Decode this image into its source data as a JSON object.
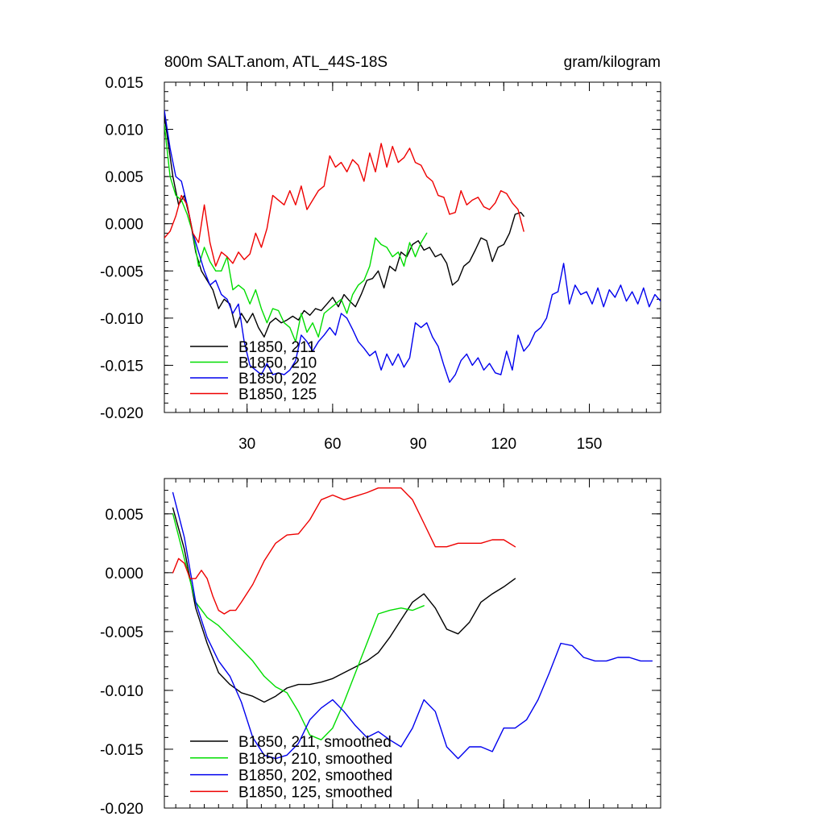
{
  "chart_data": [
    {
      "type": "line",
      "title": "800m SALT.anom, ATL_44S-18S",
      "units": "gram/kilogram",
      "xlim": [
        1,
        175
      ],
      "ylim": [
        -0.02,
        0.015
      ],
      "xticks": [
        30,
        60,
        90,
        120,
        150
      ],
      "yticks": [
        -0.02,
        -0.015,
        -0.01,
        -0.005,
        0.0,
        0.005,
        0.01,
        0.015
      ],
      "ytick_labels": [
        "-0.020",
        "-0.015",
        "-0.010",
        "-0.005",
        "0.000",
        "0.005",
        "0.010",
        "0.015"
      ],
      "legend_position": "bottom-left",
      "series": [
        {
          "name": "B1850, 211",
          "color": "#000000",
          "x": [
            1,
            4,
            6,
            8,
            10,
            12,
            14,
            16,
            18,
            20,
            22,
            24,
            26,
            28,
            30,
            32,
            34,
            36,
            38,
            40,
            42,
            44,
            46,
            48,
            50,
            52,
            54,
            56,
            58,
            60,
            62,
            64,
            66,
            68,
            70,
            72,
            74,
            76,
            78,
            80,
            82,
            84,
            86,
            88,
            90,
            92,
            94,
            96,
            98,
            100,
            102,
            104,
            106,
            108,
            110,
            112,
            114,
            116,
            118,
            120,
            122,
            124,
            126,
            127
          ],
          "y": [
            0.0115,
            0.005,
            0.002,
            0.003,
            0.0005,
            -0.003,
            -0.005,
            -0.006,
            -0.007,
            -0.009,
            -0.008,
            -0.0085,
            -0.011,
            -0.0095,
            -0.0105,
            -0.0095,
            -0.011,
            -0.012,
            -0.0105,
            -0.01,
            -0.0105,
            -0.0102,
            -0.0098,
            -0.0102,
            -0.0092,
            -0.0097,
            -0.009,
            -0.0092,
            -0.0085,
            -0.0078,
            -0.0088,
            -0.0075,
            -0.0082,
            -0.0088,
            -0.0075,
            -0.006,
            -0.0058,
            -0.005,
            -0.0068,
            -0.0045,
            -0.005,
            -0.003,
            -0.0035,
            -0.0022,
            -0.0018,
            -0.0028,
            -0.0025,
            -0.0035,
            -0.0032,
            -0.0042,
            -0.0065,
            -0.006,
            -0.0045,
            -0.004,
            -0.0028,
            -0.0015,
            -0.0018,
            -0.004,
            -0.0025,
            -0.0022,
            -0.001,
            0.001,
            0.0012,
            0.0008
          ]
        },
        {
          "name": "B1850, 210",
          "color": "#00dd00",
          "x": [
            1,
            3,
            5,
            7,
            9,
            11,
            13,
            15,
            17,
            19,
            21,
            23,
            25,
            27,
            29,
            31,
            33,
            35,
            37,
            39,
            41,
            43,
            45,
            47,
            49,
            51,
            53,
            55,
            57,
            59,
            61,
            63,
            65,
            67,
            69,
            71,
            73,
            75,
            77,
            79,
            81,
            83,
            85,
            87,
            89,
            91,
            93
          ],
          "y": [
            0.0105,
            0.005,
            0.003,
            0.0025,
            0.001,
            -0.001,
            -0.0045,
            -0.0025,
            -0.004,
            -0.005,
            -0.005,
            -0.0035,
            -0.007,
            -0.0065,
            -0.007,
            -0.0085,
            -0.007,
            -0.009,
            -0.0105,
            -0.009,
            -0.0092,
            -0.0105,
            -0.011,
            -0.0125,
            -0.0095,
            -0.0115,
            -0.0105,
            -0.012,
            -0.0095,
            -0.009,
            -0.0085,
            -0.008,
            -0.0095,
            -0.0075,
            -0.0065,
            -0.006,
            -0.0045,
            -0.0015,
            -0.0022,
            -0.0025,
            -0.0035,
            -0.003,
            -0.0045,
            -0.002,
            -0.0035,
            -0.002,
            -0.001
          ]
        },
        {
          "name": "B1850, 202",
          "color": "#0000ee",
          "x": [
            1,
            3,
            5,
            7,
            9,
            11,
            13,
            15,
            17,
            19,
            21,
            23,
            25,
            27,
            29,
            31,
            33,
            35,
            37,
            39,
            41,
            43,
            45,
            47,
            49,
            51,
            53,
            55,
            57,
            59,
            61,
            63,
            65,
            67,
            69,
            71,
            73,
            75,
            77,
            79,
            81,
            83,
            85,
            87,
            89,
            91,
            93,
            95,
            97,
            99,
            101,
            103,
            105,
            107,
            109,
            111,
            113,
            115,
            117,
            119,
            121,
            123,
            125,
            127,
            129,
            131,
            133,
            135,
            137,
            139,
            141,
            143,
            145,
            147,
            149,
            151,
            153,
            155,
            157,
            159,
            161,
            163,
            165,
            167,
            169,
            171,
            173,
            175
          ],
          "y": [
            0.012,
            0.008,
            0.005,
            0.0045,
            0.002,
            -0.001,
            -0.003,
            -0.005,
            -0.0065,
            -0.006,
            -0.0075,
            -0.008,
            -0.0095,
            -0.0085,
            -0.0125,
            -0.015,
            -0.0155,
            -0.016,
            -0.0148,
            -0.016,
            -0.0158,
            -0.016,
            -0.0155,
            -0.0145,
            -0.0118,
            -0.0125,
            -0.0135,
            -0.0125,
            -0.0118,
            -0.011,
            -0.0118,
            -0.0095,
            -0.01,
            -0.0112,
            -0.0125,
            -0.0132,
            -0.014,
            -0.0135,
            -0.0155,
            -0.0138,
            -0.015,
            -0.0138,
            -0.0152,
            -0.0142,
            -0.0105,
            -0.011,
            -0.0105,
            -0.012,
            -0.013,
            -0.015,
            -0.0168,
            -0.016,
            -0.0145,
            -0.0138,
            -0.015,
            -0.0142,
            -0.0155,
            -0.0148,
            -0.0158,
            -0.016,
            -0.0135,
            -0.0155,
            -0.0118,
            -0.0135,
            -0.0128,
            -0.0115,
            -0.011,
            -0.01,
            -0.0075,
            -0.0072,
            -0.0042,
            -0.0085,
            -0.0065,
            -0.0075,
            -0.0072,
            -0.0085,
            -0.0068,
            -0.0088,
            -0.007,
            -0.0078,
            -0.0065,
            -0.0082,
            -0.0072,
            -0.0085,
            -0.0068,
            -0.0088,
            -0.0075,
            -0.0082
          ]
        },
        {
          "name": "B1850, 125",
          "color": "#ee0000",
          "x": [
            1,
            3,
            5,
            7,
            9,
            11,
            13,
            15,
            17,
            19,
            21,
            23,
            25,
            27,
            29,
            31,
            33,
            35,
            37,
            39,
            41,
            43,
            45,
            47,
            49,
            51,
            53,
            55,
            57,
            59,
            61,
            63,
            65,
            67,
            69,
            71,
            73,
            75,
            77,
            79,
            81,
            83,
            85,
            87,
            89,
            91,
            93,
            95,
            97,
            99,
            101,
            103,
            105,
            107,
            109,
            111,
            113,
            115,
            117,
            119,
            121,
            123,
            125,
            127
          ],
          "y": [
            -0.0015,
            -0.0008,
            0.0008,
            0.003,
            0.002,
            -0.001,
            -0.002,
            0.002,
            -0.002,
            -0.0045,
            -0.003,
            -0.0035,
            -0.0042,
            -0.003,
            -0.0038,
            -0.0032,
            -0.001,
            -0.0025,
            -0.0005,
            0.003,
            0.0025,
            0.002,
            0.0035,
            0.002,
            0.004,
            0.0015,
            0.0025,
            0.0035,
            0.004,
            0.0072,
            0.006,
            0.0065,
            0.0055,
            0.0068,
            0.0062,
            0.0045,
            0.0075,
            0.0055,
            0.0085,
            0.006,
            0.0082,
            0.0065,
            0.007,
            0.008,
            0.0065,
            0.0062,
            0.005,
            0.0045,
            0.003,
            0.0028,
            0.001,
            0.0012,
            0.0035,
            0.002,
            0.0025,
            0.0028,
            0.0018,
            0.0015,
            0.0022,
            0.0035,
            0.0032,
            0.0022,
            0.0015,
            -0.0008
          ]
        }
      ]
    },
    {
      "type": "line",
      "title": "",
      "xlim": [
        1,
        175
      ],
      "ylim": [
        -0.02,
        0.008
      ],
      "xticks": [
        30,
        60,
        90,
        120,
        150
      ],
      "yticks": [
        -0.02,
        -0.015,
        -0.01,
        -0.005,
        0.0,
        0.005
      ],
      "ytick_labels": [
        "-0.020",
        "-0.015",
        "-0.010",
        "-0.005",
        "0.000",
        "0.005"
      ],
      "legend_position": "bottom-left",
      "series": [
        {
          "name": "B1850, 211, smoothed",
          "color": "#000000",
          "x": [
            4,
            8,
            12,
            16,
            20,
            24,
            28,
            32,
            36,
            40,
            44,
            48,
            52,
            56,
            60,
            64,
            68,
            72,
            76,
            80,
            84,
            88,
            92,
            96,
            100,
            104,
            108,
            112,
            116,
            120,
            124
          ],
          "y": [
            0.0055,
            0.002,
            -0.003,
            -0.006,
            -0.0085,
            -0.0095,
            -0.0102,
            -0.0105,
            -0.011,
            -0.0105,
            -0.0098,
            -0.0095,
            -0.0095,
            -0.0093,
            -0.009,
            -0.0085,
            -0.008,
            -0.0075,
            -0.0068,
            -0.0055,
            -0.004,
            -0.0025,
            -0.0018,
            -0.003,
            -0.0048,
            -0.0052,
            -0.0042,
            -0.0025,
            -0.0018,
            -0.0012,
            -0.0005
          ]
        },
        {
          "name": "B1850, 210, smoothed",
          "color": "#00dd00",
          "x": [
            4,
            8,
            12,
            16,
            20,
            24,
            28,
            32,
            36,
            40,
            44,
            48,
            52,
            56,
            60,
            64,
            68,
            72,
            76,
            80,
            84,
            88,
            92
          ],
          "y": [
            0.005,
            0.0012,
            -0.0025,
            -0.0038,
            -0.0045,
            -0.0055,
            -0.0065,
            -0.0075,
            -0.0088,
            -0.0097,
            -0.0102,
            -0.0118,
            -0.0138,
            -0.0142,
            -0.0132,
            -0.011,
            -0.0085,
            -0.006,
            -0.0035,
            -0.0032,
            -0.003,
            -0.0032,
            -0.0028
          ]
        },
        {
          "name": "B1850, 202, smoothed",
          "color": "#0000ee",
          "x": [
            4,
            8,
            12,
            16,
            20,
            24,
            28,
            32,
            36,
            40,
            44,
            48,
            52,
            56,
            60,
            64,
            68,
            72,
            76,
            80,
            84,
            88,
            92,
            96,
            100,
            104,
            108,
            112,
            116,
            120,
            124,
            128,
            132,
            136,
            140,
            144,
            148,
            152,
            156,
            160,
            164,
            168,
            172
          ],
          "y": [
            0.0068,
            0.003,
            -0.0025,
            -0.0055,
            -0.0075,
            -0.0088,
            -0.011,
            -0.014,
            -0.0155,
            -0.0158,
            -0.0155,
            -0.0145,
            -0.0125,
            -0.0115,
            -0.0108,
            -0.0118,
            -0.013,
            -0.014,
            -0.0135,
            -0.0142,
            -0.0148,
            -0.0132,
            -0.0108,
            -0.0118,
            -0.0148,
            -0.0158,
            -0.0148,
            -0.0148,
            -0.0152,
            -0.0132,
            -0.0132,
            -0.0125,
            -0.0108,
            -0.0085,
            -0.006,
            -0.0062,
            -0.0072,
            -0.0075,
            -0.0075,
            -0.0072,
            -0.0072,
            -0.0075,
            -0.0075
          ]
        },
        {
          "name": "B1850, 125, smoothed",
          "color": "#ee0000",
          "x": [
            4,
            6,
            8,
            10,
            12,
            14,
            16,
            18,
            20,
            22,
            24,
            26,
            28,
            32,
            36,
            40,
            44,
            48,
            52,
            56,
            60,
            64,
            68,
            72,
            76,
            80,
            84,
            88,
            92,
            96,
            100,
            104,
            108,
            112,
            116,
            120,
            124
          ],
          "y": [
            0.0,
            0.0012,
            0.0008,
            -0.0005,
            -0.0005,
            0.0002,
            -0.0005,
            -0.002,
            -0.0032,
            -0.0035,
            -0.0032,
            -0.0032,
            -0.0025,
            -0.001,
            0.001,
            0.0025,
            0.0032,
            0.0033,
            0.0045,
            0.0062,
            0.0066,
            0.0062,
            0.0065,
            0.0068,
            0.0072,
            0.0072,
            0.0072,
            0.0062,
            0.0042,
            0.0022,
            0.0022,
            0.0025,
            0.0025,
            0.0025,
            0.0028,
            0.0028,
            0.0022
          ]
        }
      ]
    }
  ]
}
